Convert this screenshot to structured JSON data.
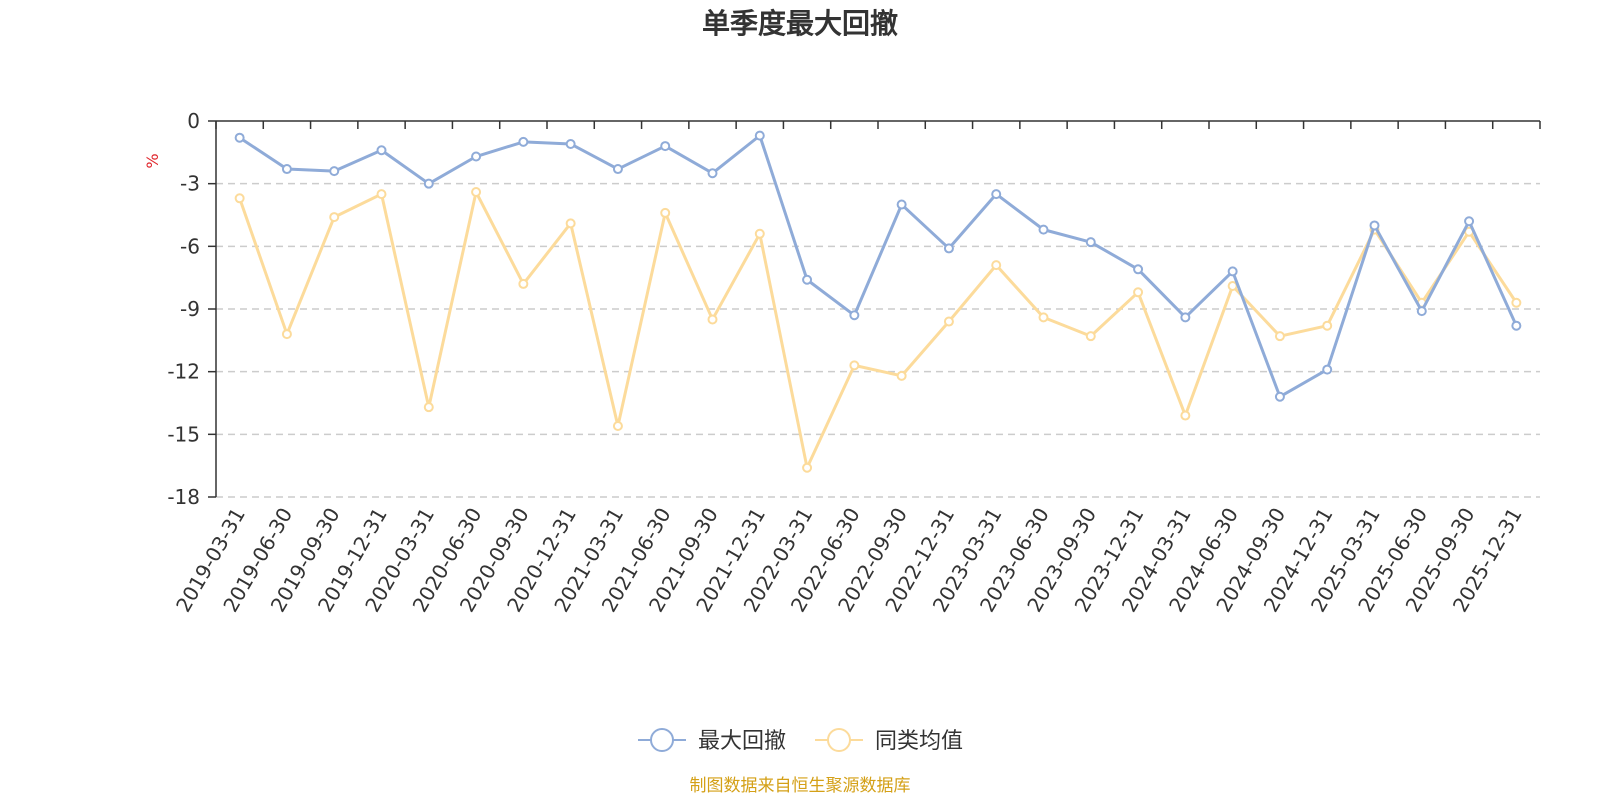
{
  "chart_data": {
    "type": "line",
    "title": "单季度最大回撤",
    "ylabel": "%",
    "ylim": [
      -18,
      0
    ],
    "y_ticks": [
      "0",
      "-3",
      "-6",
      "-9",
      "-12",
      "-15",
      "-18"
    ],
    "grid": true,
    "legend_position": "bottom-center",
    "categories": [
      "2019-03-31",
      "2019-06-30",
      "2019-09-30",
      "2019-12-31",
      "2020-03-31",
      "2020-06-30",
      "2020-09-30",
      "2020-12-31",
      "2021-03-31",
      "2021-06-30",
      "2021-09-30",
      "2021-12-31",
      "2022-03-31",
      "2022-06-30",
      "2022-09-30",
      "2022-12-31",
      "2023-03-31",
      "2023-06-30",
      "2023-09-30",
      "2023-12-31",
      "2024-03-31",
      "2024-06-30",
      "2024-09-30",
      "2024-12-31",
      "2025-03-31",
      "2025-06-30",
      "2025-09-30",
      "2025-12-31"
    ],
    "series": [
      {
        "name": "最大回撤",
        "color": "#8fabd8",
        "values": [
          -0.8,
          -2.3,
          -2.4,
          -1.4,
          -3.0,
          -1.7,
          -1.0,
          -1.1,
          -2.3,
          -1.2,
          -2.5,
          -0.7,
          -7.6,
          -9.3,
          -4.0,
          -6.1,
          -3.5,
          -5.2,
          -5.8,
          -7.1,
          -9.4,
          -7.2,
          -13.2,
          -11.9,
          -5.0,
          -9.1,
          -4.8,
          -9.8
        ]
      },
      {
        "name": "同类均值",
        "color": "#fcdb9b",
        "values": [
          -3.7,
          -10.2,
          -4.6,
          -3.5,
          -13.7,
          -3.4,
          -7.8,
          -4.9,
          -14.6,
          -4.4,
          -9.5,
          -5.4,
          -16.6,
          -11.7,
          -12.2,
          -9.6,
          -6.9,
          -9.4,
          -10.3,
          -8.2,
          -14.1,
          -7.9,
          -10.3,
          -9.8,
          -5.2,
          -8.7,
          -5.3,
          -8.7
        ]
      }
    ],
    "source_text": "制图数据来自恒生聚源数据库",
    "source_color": "#d4a017",
    "unit_color": "#e0252b",
    "axis_color": "#333333",
    "grid_color": "#cccccc"
  }
}
